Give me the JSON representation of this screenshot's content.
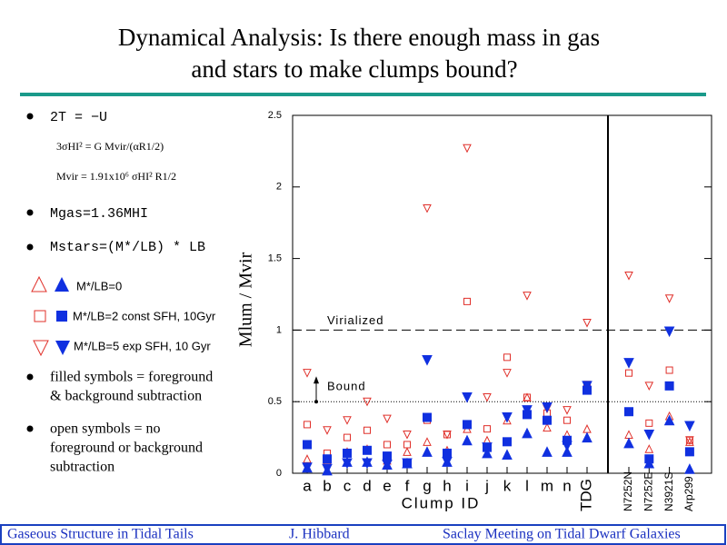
{
  "slide": {
    "title": [
      "Dynamical Analysis: Is there enough mass in gas",
      "and stars to make clumps bound?"
    ],
    "equations": [
      "2T = −U",
      "3σHI² = G Mvir/(αR1/2)",
      "Mvir = 1.91x10⁶ σHI² R1/2",
      "Mgas=1.36MHI",
      "Mstars=(M*/LB) * LB"
    ],
    "legend": [
      "M*/LB=0",
      "M*/LB=2  const SFH, 10Gyr",
      "M*/LB=5  exp SFH, 10 Gyr"
    ],
    "notes": [
      [
        "filled symbols = foreground",
        "& background subtraction"
      ],
      [
        "open symbols = no",
        "foreground or  background",
        "subtraction"
      ]
    ],
    "footer": [
      "Gaseous Structure in Tidal Tails",
      "J. Hibbard",
      "Saclay Meeting on Tidal Dwarf Galaxies"
    ]
  },
  "chart_data": {
    "type": "scatter",
    "x_label": "Clump ID",
    "y_label": "Mlum / Mvir",
    "annotations": [
      "Virialized",
      "Bound"
    ],
    "reference_lines": [
      1,
      0.5
    ],
    "categories": [
      "a",
      "b",
      "c",
      "d",
      "e",
      "f",
      "g",
      "h",
      "i",
      "j",
      "k",
      "l",
      "m",
      "n",
      "TDG",
      "N7252N",
      "N7252E",
      "N3921S",
      "Arp299"
    ],
    "ylim": [
      0,
      2.5
    ],
    "yticks": [
      0,
      0.5,
      1,
      1.5,
      2,
      2.5
    ],
    "series": [
      {
        "marker": "triangle",
        "filled": false,
        "color": "#e0302a",
        "values": [
          0.1,
          0.09,
          0.15,
          0.17,
          0.09,
          0.15,
          0.22,
          0.16,
          0.31,
          0.23,
          0.37,
          0.53,
          0.32,
          0.27,
          0.31,
          0.27,
          0.17,
          0.4,
          0.22
        ]
      },
      {
        "marker": "triangle",
        "filled": true,
        "color": "#1030e0",
        "values": [
          0.04,
          0.02,
          0.08,
          0.08,
          0.06,
          0.07,
          0.15,
          0.08,
          0.23,
          0.14,
          0.13,
          0.28,
          0.15,
          0.15,
          0.25,
          0.21,
          0.07,
          0.37,
          0.03
        ]
      },
      {
        "marker": "square",
        "filled": false,
        "color": "#e0302a",
        "values": [
          0.34,
          0.14,
          0.25,
          0.3,
          0.2,
          0.2,
          0.37,
          0.27,
          1.2,
          0.31,
          0.81,
          0.53,
          0.42,
          0.37,
          0.62,
          0.7,
          0.35,
          0.72,
          0.23
        ]
      },
      {
        "marker": "square",
        "filled": true,
        "color": "#1030e0",
        "values": [
          0.2,
          0.1,
          0.14,
          0.16,
          0.12,
          0.07,
          0.39,
          0.14,
          0.34,
          0.18,
          0.22,
          0.41,
          0.37,
          0.23,
          0.58,
          0.43,
          0.1,
          0.61,
          0.15
        ]
      },
      {
        "marker": "down",
        "filled": false,
        "color": "#e0302a",
        "values": [
          0.7,
          0.3,
          0.37,
          0.5,
          0.38,
          0.27,
          1.85,
          0.27,
          2.27,
          0.53,
          0.7,
          1.24,
          0.45,
          0.44,
          1.05,
          1.38,
          0.61,
          1.22,
          0.23
        ]
      },
      {
        "marker": "down",
        "filled": true,
        "color": "#1030e0",
        "values": [
          0.04,
          0.03,
          0.07,
          0.07,
          0.06,
          0.07,
          0.79,
          0.08,
          0.53,
          0.18,
          0.39,
          0.44,
          0.46,
          0.19,
          0.61,
          0.77,
          0.27,
          0.99,
          0.33
        ]
      }
    ]
  }
}
